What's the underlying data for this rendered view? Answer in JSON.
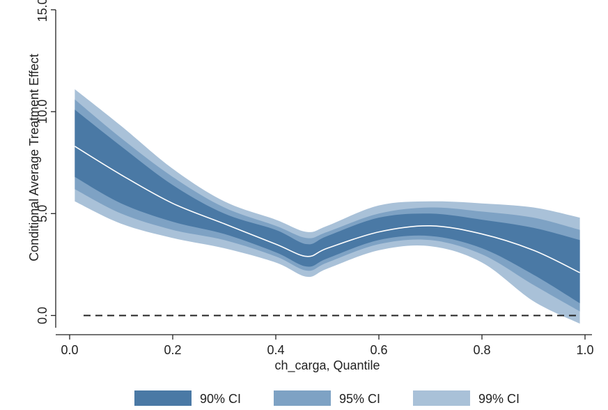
{
  "chart_data": {
    "type": "area",
    "xlabel": "ch_carga, Quantile",
    "ylabel": "Conditional Average Treatment Effect",
    "xlim": [
      0.0,
      1.0
    ],
    "ylim": [
      -0.6,
      15.0
    ],
    "xticks": [
      0.0,
      0.2,
      0.4,
      0.6,
      0.8,
      1.0
    ],
    "xtick_labels": [
      "0.0",
      "0.2",
      "0.4",
      "0.6",
      "0.8",
      "1.0"
    ],
    "yticks": [
      0.0,
      5.0,
      10.0,
      15.0
    ],
    "ytick_labels": [
      "0.0",
      "5.0",
      "10.0",
      "15.0"
    ],
    "grid": false,
    "legend_position": "bottom",
    "reference_line": {
      "y": 0.0,
      "style": "dashed"
    },
    "x": [
      0.01,
      0.1,
      0.2,
      0.3,
      0.4,
      0.46,
      0.5,
      0.6,
      0.7,
      0.8,
      0.9,
      0.99
    ],
    "estimate": [
      8.3,
      6.9,
      5.5,
      4.5,
      3.5,
      2.9,
      3.3,
      4.1,
      4.4,
      4.0,
      3.2,
      2.1
    ],
    "bands": [
      {
        "name": "99% CI",
        "color": "#a9c1d8",
        "lower": [
          5.6,
          4.5,
          3.8,
          3.3,
          2.6,
          1.9,
          2.3,
          3.2,
          3.4,
          2.6,
          0.7,
          -0.4
        ],
        "upper": [
          11.1,
          9.3,
          7.2,
          5.6,
          4.7,
          4.1,
          4.4,
          5.4,
          5.6,
          5.5,
          5.3,
          4.8
        ]
      },
      {
        "name": "95% CI",
        "color": "#7ea2c4",
        "lower": [
          6.2,
          5.0,
          4.2,
          3.7,
          2.9,
          2.2,
          2.6,
          3.5,
          3.7,
          3.0,
          1.5,
          0.2
        ],
        "upper": [
          10.6,
          8.7,
          6.8,
          5.3,
          4.4,
          3.8,
          4.1,
          5.0,
          5.3,
          5.1,
          4.8,
          4.2
        ]
      },
      {
        "name": "90% CI",
        "color": "#4a79a5",
        "lower": [
          6.8,
          5.5,
          4.6,
          4.0,
          3.1,
          2.4,
          2.8,
          3.7,
          3.9,
          3.3,
          2.0,
          0.6
        ],
        "upper": [
          10.1,
          8.3,
          6.4,
          5.0,
          4.2,
          3.5,
          3.9,
          4.8,
          5.0,
          4.7,
          4.3,
          3.7
        ]
      }
    ],
    "legend": [
      {
        "name": "90% CI",
        "color": "#4a79a5"
      },
      {
        "name": "95% CI",
        "color": "#7ea2c4"
      },
      {
        "name": "99% CI",
        "color": "#a9c1d8"
      }
    ]
  }
}
